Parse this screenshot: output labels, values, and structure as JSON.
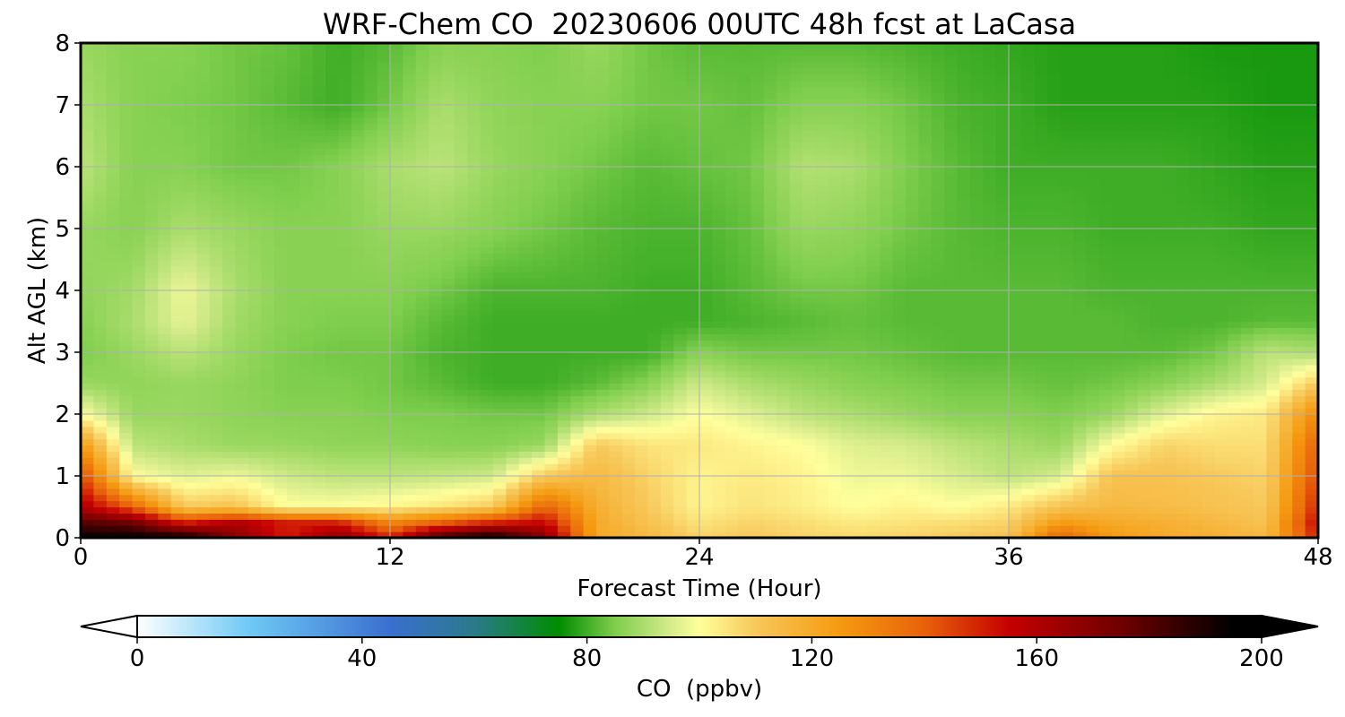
{
  "chart_data": {
    "type": "heatmap",
    "title": "WRF-Chem CO  20230606 00UTC 48h fcst at LaCasa",
    "xlabel": "Forecast Time (Hour)",
    "ylabel": "Alt AGL (km)",
    "xlim": [
      0,
      48
    ],
    "ylim": [
      0,
      8
    ],
    "xticks": [
      0,
      12,
      24,
      36,
      48
    ],
    "yticks": [
      0,
      1,
      2,
      3,
      4,
      5,
      6,
      7,
      8
    ],
    "grid": true,
    "colorbar": {
      "label": "CO  (ppbv)",
      "range": [
        0,
        200
      ],
      "ticks": [
        0,
        40,
        80,
        120,
        160,
        200
      ],
      "extend": "both",
      "orientation": "horizontal",
      "stops": [
        {
          "value": 0,
          "color": "#ffffff"
        },
        {
          "value": 20,
          "color": "#6ec9f5"
        },
        {
          "value": 45,
          "color": "#3a6fcf"
        },
        {
          "value": 60,
          "color": "#2a7a8a"
        },
        {
          "value": 75,
          "color": "#008c00"
        },
        {
          "value": 85,
          "color": "#7fce4d"
        },
        {
          "value": 95,
          "color": "#d6ec8c"
        },
        {
          "value": 100,
          "color": "#ffff9c"
        },
        {
          "value": 110,
          "color": "#f7c85a"
        },
        {
          "value": 125,
          "color": "#f59a10"
        },
        {
          "value": 140,
          "color": "#e8620b"
        },
        {
          "value": 155,
          "color": "#c50000"
        },
        {
          "value": 175,
          "color": "#6e0000"
        },
        {
          "value": 195,
          "color": "#000000"
        }
      ]
    },
    "hours": [
      0,
      2,
      4,
      6,
      8,
      10,
      12,
      14,
      16,
      18,
      20,
      22,
      24,
      26,
      28,
      30,
      32,
      34,
      36,
      38,
      40,
      42,
      44,
      46,
      48
    ],
    "levels_km": [
      0,
      0.25,
      0.5,
      1,
      1.5,
      2,
      2.5,
      3,
      3.5,
      4,
      5,
      6,
      7,
      8
    ],
    "co_ppbv": [
      [
        195,
        195,
        195,
        170,
        150,
        170,
        150,
        185,
        195,
        170,
        120,
        115,
        108,
        110,
        108,
        107,
        108,
        110,
        112,
        140,
        125,
        120,
        118,
        115,
        150
      ],
      [
        180,
        175,
        150,
        160,
        150,
        150,
        130,
        140,
        150,
        155,
        120,
        112,
        105,
        108,
        106,
        104,
        105,
        106,
        108,
        125,
        120,
        118,
        115,
        112,
        155
      ],
      [
        160,
        140,
        110,
        112,
        100,
        100,
        102,
        105,
        110,
        140,
        118,
        110,
        102,
        105,
        103,
        100,
        102,
        100,
        104,
        112,
        115,
        114,
        112,
        110,
        150
      ],
      [
        145,
        100,
        96,
        98,
        94,
        92,
        92,
        93,
        94,
        110,
        115,
        108,
        102,
        104,
        102,
        98,
        98,
        95,
        92,
        95,
        112,
        112,
        110,
        108,
        145
      ],
      [
        125,
        92,
        90,
        88,
        88,
        87,
        87,
        86,
        86,
        88,
        110,
        105,
        104,
        102,
        100,
        96,
        95,
        92,
        90,
        88,
        100,
        108,
        106,
        106,
        140
      ],
      [
        100,
        88,
        88,
        87,
        86,
        86,
        85,
        85,
        84,
        84,
        90,
        94,
        100,
        96,
        92,
        90,
        88,
        86,
        86,
        85,
        88,
        96,
        102,
        104,
        130
      ],
      [
        88,
        87,
        88,
        87,
        85,
        85,
        84,
        82,
        80,
        80,
        82,
        86,
        94,
        90,
        88,
        86,
        85,
        84,
        84,
        83,
        84,
        86,
        90,
        95,
        110
      ],
      [
        85,
        88,
        92,
        88,
        85,
        84,
        84,
        81,
        80,
        80,
        80,
        80,
        86,
        84,
        84,
        84,
        83,
        82,
        82,
        82,
        82,
        82,
        84,
        92,
        90
      ],
      [
        86,
        90,
        97,
        89,
        86,
        85,
        85,
        82,
        80,
        80,
        80,
        80,
        80,
        81,
        82,
        83,
        82,
        82,
        82,
        82,
        82,
        81,
        81,
        82,
        82
      ],
      [
        87,
        89,
        98,
        90,
        86,
        86,
        86,
        84,
        81,
        81,
        81,
        80,
        80,
        82,
        84,
        84,
        82,
        82,
        82,
        82,
        81,
        81,
        81,
        81,
        81
      ],
      [
        88,
        86,
        90,
        88,
        86,
        86,
        88,
        88,
        86,
        84,
        82,
        81,
        81,
        83,
        88,
        87,
        84,
        82,
        81,
        81,
        80,
        80,
        80,
        79,
        79
      ],
      [
        92,
        86,
        86,
        84,
        84,
        86,
        90,
        92,
        88,
        86,
        84,
        82,
        83,
        84,
        91,
        90,
        85,
        82,
        80,
        80,
        80,
        80,
        79,
        78,
        78
      ],
      [
        90,
        86,
        85,
        84,
        82,
        80,
        84,
        90,
        87,
        86,
        86,
        84,
        84,
        83,
        86,
        86,
        84,
        81,
        80,
        78,
        78,
        78,
        78,
        77,
        77
      ],
      [
        88,
        86,
        86,
        84,
        83,
        80,
        82,
        86,
        86,
        85,
        88,
        84,
        82,
        82,
        82,
        82,
        81,
        80,
        79,
        78,
        78,
        78,
        77,
        77,
        77
      ]
    ]
  }
}
